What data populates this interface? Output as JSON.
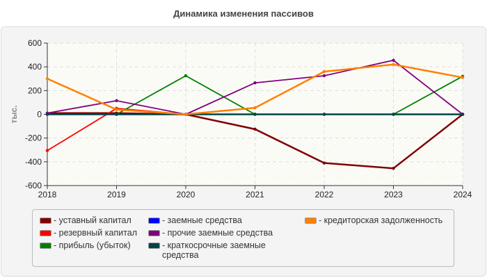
{
  "chart_data": {
    "type": "line",
    "title": "Динамика изменения пассивов",
    "xlabel": "",
    "ylabel": "тыс.",
    "x": [
      "2018",
      "2019",
      "2020",
      "2021",
      "2022",
      "2023",
      "2024"
    ],
    "ylim": [
      -600,
      600
    ],
    "yticks": [
      "600",
      "400",
      "200",
      "0",
      "-200",
      "-400",
      "-600"
    ],
    "grid": true,
    "legend": "bottom",
    "series": [
      {
        "name": "- уставный капитал",
        "color": "#800000",
        "values": [
          10,
          10,
          0,
          -125,
          -410,
          -455,
          0
        ]
      },
      {
        "name": "- резервный капитал",
        "color": "#ff0000",
        "values": [
          -305,
          50,
          0,
          0,
          0,
          0,
          0
        ]
      },
      {
        "name": "- прибыль (убыток)",
        "color": "#008000",
        "values": [
          0,
          0,
          325,
          0,
          0,
          0,
          320
        ]
      },
      {
        "name": "- заемные средства",
        "color": "#0000ff",
        "values": [
          0,
          0,
          0,
          0,
          0,
          0,
          0
        ]
      },
      {
        "name": "- прочие заемные средства",
        "color": "#800080",
        "values": [
          10,
          115,
          0,
          265,
          325,
          455,
          0
        ]
      },
      {
        "name": "- краткосрочные заемные средства",
        "color": "#004545",
        "values": [
          0,
          0,
          0,
          0,
          0,
          0,
          0
        ]
      },
      {
        "name": "- кредиторская задолженность",
        "color": "#ff8000",
        "values": [
          300,
          40,
          0,
          55,
          360,
          420,
          310
        ]
      }
    ]
  }
}
